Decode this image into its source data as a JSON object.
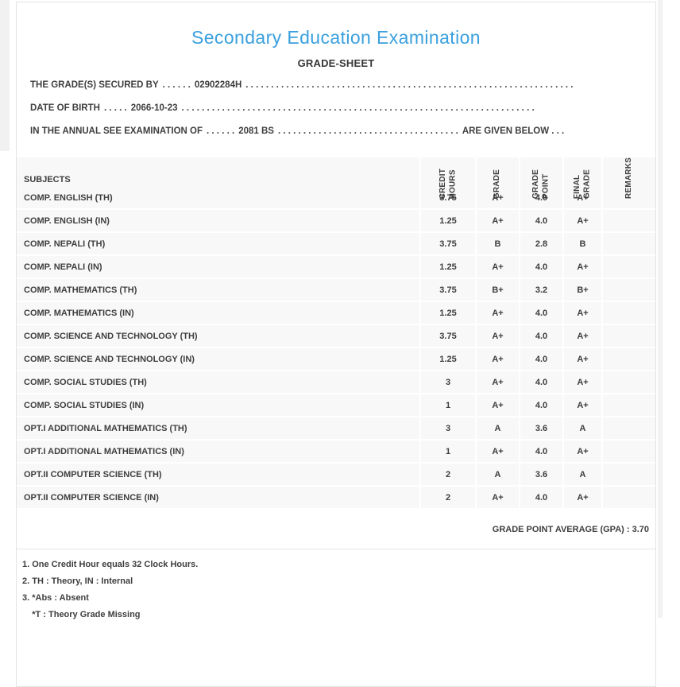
{
  "page": {
    "title": "Secondary Education Examination",
    "subtitle": "GRADE-SHEET"
  },
  "info_lines": [
    {
      "label": "THE GRADE(S) SECURED BY",
      "leader": ". . . . . .",
      "value": "02902284H",
      "trailer": ". . . . . . . . . . . . . . . . . . . . . . . . . . . . . . . . . . . . . . . . . . . . . . . . . . . . . . . . . . . . . . . . .",
      "suffix": ""
    },
    {
      "label": "DATE OF BIRTH",
      "leader": ". . . . .",
      "value": "2066-10-23",
      "trailer": ". . . . . . . . . . . . . . . . . . . . . . . . . . . . . . . . . . . . . . . . . . . . . . . . . . . . . . . . . . . . . . . . . . . . . .",
      "suffix": ""
    },
    {
      "label": "IN THE ANNUAL SEE EXAMINATION OF",
      "leader": ". . . . . .",
      "value": "2081 BS",
      "trailer": ". . . . . . . . . . . . . . . . . . . . . . . . . . . . . . . . . . . .",
      "suffix": "ARE GIVEN BELOW . . ."
    }
  ],
  "table": {
    "headers": {
      "subjects": "SUBJECTS",
      "credit_hours": "CREDIT\nHOURS",
      "grade": "GRADE",
      "grade_point": "GRADE\nPOINT",
      "final_grade": "FINAL\nGRADE",
      "remarks": "REMARKS"
    },
    "rows": [
      {
        "subject": "COMP. ENGLISH (TH)",
        "credit_hours": "3.75",
        "grade": "A+",
        "grade_point": "4.0",
        "final_grade": "A+",
        "remarks": ""
      },
      {
        "subject": "COMP. ENGLISH (IN)",
        "credit_hours": "1.25",
        "grade": "A+",
        "grade_point": "4.0",
        "final_grade": "A+",
        "remarks": ""
      },
      {
        "subject": "COMP. NEPALI (TH)",
        "credit_hours": "3.75",
        "grade": "B",
        "grade_point": "2.8",
        "final_grade": "B",
        "remarks": ""
      },
      {
        "subject": "COMP. NEPALI (IN)",
        "credit_hours": "1.25",
        "grade": "A+",
        "grade_point": "4.0",
        "final_grade": "A+",
        "remarks": ""
      },
      {
        "subject": "COMP. MATHEMATICS (TH)",
        "credit_hours": "3.75",
        "grade": "B+",
        "grade_point": "3.2",
        "final_grade": "B+",
        "remarks": ""
      },
      {
        "subject": "COMP. MATHEMATICS (IN)",
        "credit_hours": "1.25",
        "grade": "A+",
        "grade_point": "4.0",
        "final_grade": "A+",
        "remarks": ""
      },
      {
        "subject": "COMP. SCIENCE AND TECHNOLOGY (TH)",
        "credit_hours": "3.75",
        "grade": "A+",
        "grade_point": "4.0",
        "final_grade": "A+",
        "remarks": ""
      },
      {
        "subject": "COMP. SCIENCE AND TECHNOLOGY (IN)",
        "credit_hours": "1.25",
        "grade": "A+",
        "grade_point": "4.0",
        "final_grade": "A+",
        "remarks": ""
      },
      {
        "subject": "COMP. SOCIAL STUDIES (TH)",
        "credit_hours": "3",
        "grade": "A+",
        "grade_point": "4.0",
        "final_grade": "A+",
        "remarks": ""
      },
      {
        "subject": "COMP. SOCIAL STUDIES (IN)",
        "credit_hours": "1",
        "grade": "A+",
        "grade_point": "4.0",
        "final_grade": "A+",
        "remarks": ""
      },
      {
        "subject": "OPT.I ADDITIONAL MATHEMATICS (TH)",
        "credit_hours": "3",
        "grade": "A",
        "grade_point": "3.6",
        "final_grade": "A",
        "remarks": ""
      },
      {
        "subject": "OPT.I ADDITIONAL MATHEMATICS (IN)",
        "credit_hours": "1",
        "grade": "A+",
        "grade_point": "4.0",
        "final_grade": "A+",
        "remarks": ""
      },
      {
        "subject": "OPT.II COMPUTER SCIENCE (TH)",
        "credit_hours": "2",
        "grade": "A",
        "grade_point": "3.6",
        "final_grade": "A",
        "remarks": ""
      },
      {
        "subject": "OPT.II COMPUTER SCIENCE (IN)",
        "credit_hours": "2",
        "grade": "A+",
        "grade_point": "4.0",
        "final_grade": "A+",
        "remarks": ""
      }
    ]
  },
  "summary": {
    "gpa_text": "GRADE POINT AVERAGE (GPA) : 3.70"
  },
  "notes": [
    "1. One Credit Hour equals 32 Clock Hours.",
    "2. TH : Theory, IN : Internal",
    "3. *Abs : Absent",
    "    *T : Theory Grade Missing"
  ],
  "colors": {
    "title_blue": "#3aa0de",
    "text_dark": "#3e3e3e",
    "row_bg": "#f8f8f8",
    "panel_border": "#e3e3e3"
  }
}
